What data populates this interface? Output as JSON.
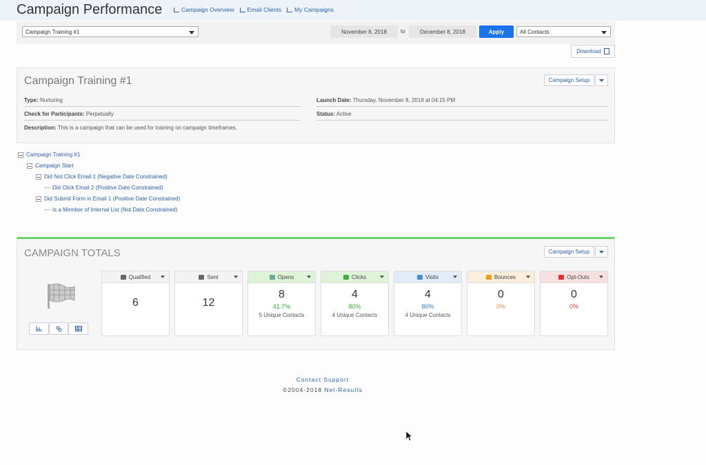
{
  "header": {
    "title": "Campaign Performance",
    "nav": [
      "Campaign Overview",
      "Email Clients",
      "My Campaigns"
    ]
  },
  "toolbar": {
    "campaign_select": "Campaign Training #1",
    "start_date": "November 8, 2018",
    "to": "to",
    "end_date": "December 8, 2018",
    "apply": "Apply",
    "contacts_select": "All Contacts",
    "download": "Download"
  },
  "details": {
    "title": "Campaign Training #1",
    "setup": "Campaign Setup",
    "left": [
      {
        "label": "Type:",
        "value": "Nurturing"
      },
      {
        "label": "Check for Participants:",
        "value": "Perpetually"
      }
    ],
    "right": [
      {
        "label": "Launch Date:",
        "value": "Thursday, November 8, 2018 at 04:15 PM"
      },
      {
        "label": "Status:",
        "value": "Active"
      }
    ],
    "description": {
      "label": "Description:",
      "value": "This is a campaign that can be used for training on campaign timeframes."
    }
  },
  "tree": {
    "label": "Campaign Training #1",
    "children": [
      {
        "label": "Campaign Start",
        "children": [
          {
            "label": "Did Not Click Email 1 (Negative Date Constrained)",
            "children": [
              {
                "label": "Did Click Email 2 (Positive Date Constrained)"
              }
            ]
          },
          {
            "label": "Did Submit Form in Email 1 (Positive Date Constrained)",
            "children": [
              {
                "label": "Is a Member of Internal List (Not Date Constrained)"
              }
            ]
          }
        ]
      }
    ]
  },
  "totals": {
    "title": "CAMPAIGN TOTALS",
    "setup": "Campaign Setup",
    "cards": [
      {
        "label": "Qualified",
        "value": 6
      },
      {
        "label": "Sent",
        "value": 12
      },
      {
        "label": "Opens",
        "value": 8,
        "rate": "41.7%",
        "unique": "5 Unique Contacts"
      },
      {
        "label": "Clicks",
        "value": 4,
        "rate": "80%",
        "unique": "4 Unique Contacts"
      },
      {
        "label": "Visits",
        "value": 4,
        "rate": "80%",
        "unique": "4 Unique Contacts"
      },
      {
        "label": "Bounces",
        "value": 0,
        "rate": "0%"
      },
      {
        "label": "Opt-Outs",
        "value": 0,
        "rate": "0%"
      }
    ]
  },
  "footer": {
    "support": "Contact Support",
    "copyright": "©2004-2018",
    "company": "Net-Results"
  }
}
